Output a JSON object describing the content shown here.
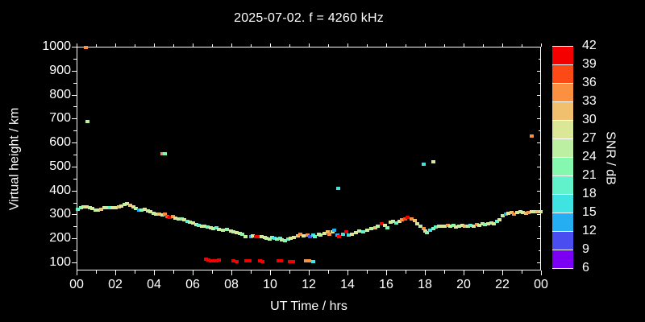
{
  "background": "#000000",
  "foreground": "#FFFFFF",
  "title": "2025-07-02. f = 4260 kHz",
  "chart_data": {
    "type": "scatter",
    "title": "2025-07-02. f = 4260 kHz",
    "xlabel": "UT Time / hrs",
    "ylabel": "Virtual height / km",
    "x_range_hours": [
      0,
      24
    ],
    "y_range_km": [
      100,
      1000
    ],
    "grid": false,
    "x_tick_labels": [
      "00",
      "02",
      "04",
      "06",
      "08",
      "10",
      "12",
      "14",
      "16",
      "18",
      "20",
      "22",
      "00"
    ],
    "x_major_ticks_hours": [
      0,
      2,
      4,
      6,
      8,
      10,
      12,
      14,
      16,
      18,
      20,
      22,
      24
    ],
    "x_minor_ticks_hours": [
      1,
      3,
      5,
      7,
      9,
      11,
      13,
      15,
      17,
      19,
      21,
      23
    ],
    "y_major_ticks_km": [
      1000,
      900,
      800,
      700,
      600,
      500,
      400,
      300,
      200,
      100
    ],
    "y_minor_ticks_km": [
      950,
      850,
      750,
      650,
      550,
      450,
      350,
      250,
      150
    ],
    "colorbar": {
      "label": "SNR / dB",
      "tick_labels": [
        "42",
        "39",
        "36",
        "33",
        "30",
        "27",
        "24",
        "21",
        "18",
        "15",
        "12",
        "9",
        "6"
      ],
      "bands_top_to_bottom": [
        "39",
        "36",
        "33",
        "30",
        "27",
        "24",
        "21",
        "18",
        "15",
        "12",
        "9",
        "6"
      ]
    },
    "snr_band_colors": {
      "39": "#F40000",
      "36": "#FB4A15",
      "33": "#FB9140",
      "30": "#F0C06E",
      "27": "#D9E797",
      "24": "#BDEFA3",
      "21": "#86F7AE",
      "18": "#62F2CB",
      "15": "#3FE4E2",
      "12": "#25AEF1",
      "9": "#4A4DF0",
      "6": "#7B00F3"
    },
    "points_hr_km_snrband": [
      [
        0.05,
        322,
        "18"
      ],
      [
        0.2,
        327,
        "21"
      ],
      [
        0.35,
        331,
        "27"
      ],
      [
        0.5,
        333,
        "27"
      ],
      [
        0.65,
        330,
        "24"
      ],
      [
        0.8,
        325,
        "27"
      ],
      [
        0.95,
        319,
        "24"
      ],
      [
        1.1,
        317,
        "27"
      ],
      [
        1.25,
        322,
        "30"
      ],
      [
        1.4,
        327,
        "27"
      ],
      [
        1.55,
        330,
        "24"
      ],
      [
        1.7,
        328,
        "18"
      ],
      [
        1.85,
        330,
        "27"
      ],
      [
        2.0,
        327,
        "27"
      ],
      [
        2.15,
        331,
        "30"
      ],
      [
        2.3,
        336,
        "27"
      ],
      [
        2.45,
        342,
        "24"
      ],
      [
        2.6,
        345,
        "27"
      ],
      [
        2.75,
        339,
        "30"
      ],
      [
        2.9,
        333,
        "27"
      ],
      [
        3.05,
        326,
        "24"
      ],
      [
        3.2,
        317,
        "12"
      ],
      [
        3.35,
        318,
        "21"
      ],
      [
        3.5,
        322,
        "27"
      ],
      [
        3.65,
        315,
        "24"
      ],
      [
        3.8,
        310,
        "27"
      ],
      [
        3.95,
        305,
        "24"
      ],
      [
        4.1,
        300,
        "27"
      ],
      [
        4.25,
        303,
        "30"
      ],
      [
        4.4,
        298,
        "24"
      ],
      [
        4.55,
        300,
        "33"
      ],
      [
        4.65,
        293,
        "36"
      ],
      [
        4.8,
        288,
        "39"
      ],
      [
        4.95,
        292,
        "33"
      ],
      [
        5.1,
        285,
        "27"
      ],
      [
        5.25,
        280,
        "24"
      ],
      [
        5.4,
        283,
        "21"
      ],
      [
        5.55,
        277,
        "27"
      ],
      [
        5.7,
        272,
        "18"
      ],
      [
        5.85,
        268,
        "24"
      ],
      [
        6.0,
        263,
        "27"
      ],
      [
        6.15,
        258,
        "24"
      ],
      [
        6.3,
        255,
        "18"
      ],
      [
        6.45,
        250,
        "27"
      ],
      [
        6.6,
        252,
        "24"
      ],
      [
        6.75,
        247,
        "21"
      ],
      [
        6.9,
        243,
        "27"
      ],
      [
        7.05,
        240,
        "24"
      ],
      [
        7.2,
        243,
        "18"
      ],
      [
        7.35,
        238,
        "27"
      ],
      [
        7.55,
        235,
        "24"
      ],
      [
        7.75,
        237,
        "21"
      ],
      [
        7.95,
        232,
        "27"
      ],
      [
        8.1,
        228,
        "24"
      ],
      [
        8.25,
        224,
        "27"
      ],
      [
        8.4,
        220,
        "24"
      ],
      [
        8.55,
        218,
        "21"
      ],
      [
        8.7,
        208,
        "24"
      ],
      [
        9.0,
        208,
        "12"
      ],
      [
        9.1,
        211,
        "27"
      ],
      [
        9.25,
        208,
        "39"
      ],
      [
        9.4,
        207,
        "39"
      ],
      [
        9.55,
        206,
        "27"
      ],
      [
        9.7,
        204,
        "27"
      ],
      [
        9.8,
        201,
        "24"
      ],
      [
        9.95,
        198,
        "24"
      ],
      [
        10.1,
        205,
        "21"
      ],
      [
        10.2,
        200,
        "15"
      ],
      [
        10.35,
        197,
        "21"
      ],
      [
        10.5,
        200,
        "18"
      ],
      [
        10.6,
        194,
        "24"
      ],
      [
        10.75,
        192,
        "21"
      ],
      [
        10.9,
        197,
        "18"
      ],
      [
        11.05,
        200,
        "27"
      ],
      [
        11.2,
        204,
        "27"
      ],
      [
        11.4,
        211,
        "30"
      ],
      [
        11.55,
        218,
        "33"
      ],
      [
        11.7,
        211,
        "27"
      ],
      [
        11.9,
        215,
        "33"
      ],
      [
        12.05,
        208,
        "9"
      ],
      [
        12.2,
        215,
        "15"
      ],
      [
        12.3,
        208,
        "18"
      ],
      [
        12.5,
        219,
        "24"
      ],
      [
        12.6,
        215,
        "24"
      ],
      [
        12.8,
        222,
        "27"
      ],
      [
        12.95,
        228,
        "30"
      ],
      [
        13.05,
        219,
        "33"
      ],
      [
        13.2,
        228,
        "27"
      ],
      [
        13.3,
        233,
        "12"
      ],
      [
        13.45,
        215,
        "12"
      ],
      [
        13.55,
        208,
        "39"
      ],
      [
        13.75,
        216,
        "15"
      ],
      [
        13.9,
        226,
        "39"
      ],
      [
        14.05,
        213,
        "15"
      ],
      [
        14.2,
        218,
        "27"
      ],
      [
        14.4,
        225,
        "27"
      ],
      [
        14.6,
        230,
        "24"
      ],
      [
        14.8,
        228,
        "18"
      ],
      [
        15.0,
        235,
        "27"
      ],
      [
        15.2,
        240,
        "24"
      ],
      [
        15.4,
        245,
        "30"
      ],
      [
        15.55,
        250,
        "24"
      ],
      [
        15.75,
        262,
        "39"
      ],
      [
        15.9,
        255,
        "27"
      ],
      [
        16.05,
        246,
        "21"
      ],
      [
        16.2,
        268,
        "27"
      ],
      [
        16.35,
        270,
        "24"
      ],
      [
        16.5,
        265,
        "18"
      ],
      [
        16.65,
        272,
        "27"
      ],
      [
        16.8,
        278,
        "33"
      ],
      [
        16.95,
        283,
        "36"
      ],
      [
        17.1,
        287,
        "39"
      ],
      [
        17.3,
        283,
        "33"
      ],
      [
        17.45,
        275,
        "30"
      ],
      [
        17.6,
        262,
        "27"
      ],
      [
        17.75,
        250,
        "24"
      ],
      [
        17.9,
        240,
        "33"
      ],
      [
        18.0,
        230,
        "27"
      ],
      [
        18.1,
        224,
        "21"
      ],
      [
        18.25,
        235,
        "15"
      ],
      [
        18.4,
        242,
        "21"
      ],
      [
        18.55,
        248,
        "18"
      ],
      [
        18.7,
        252,
        "24"
      ],
      [
        18.85,
        250,
        "27"
      ],
      [
        19.0,
        252,
        "27"
      ],
      [
        19.15,
        255,
        "33"
      ],
      [
        19.3,
        250,
        "24"
      ],
      [
        19.45,
        253,
        "21"
      ],
      [
        19.6,
        248,
        "27"
      ],
      [
        19.75,
        252,
        "24"
      ],
      [
        19.9,
        255,
        "27"
      ],
      [
        20.05,
        252,
        "30"
      ],
      [
        20.2,
        250,
        "24"
      ],
      [
        20.35,
        255,
        "18"
      ],
      [
        20.5,
        252,
        "27"
      ],
      [
        20.65,
        258,
        "33"
      ],
      [
        20.8,
        255,
        "27"
      ],
      [
        20.95,
        260,
        "24"
      ],
      [
        21.1,
        258,
        "21"
      ],
      [
        21.25,
        262,
        "27"
      ],
      [
        21.4,
        265,
        "24"
      ],
      [
        21.55,
        262,
        "27"
      ],
      [
        21.7,
        270,
        "18"
      ],
      [
        21.85,
        278,
        "27"
      ],
      [
        22.0,
        295,
        "24"
      ],
      [
        22.15,
        302,
        "12"
      ],
      [
        22.3,
        305,
        "27"
      ],
      [
        22.45,
        308,
        "30"
      ],
      [
        22.6,
        303,
        "33"
      ],
      [
        22.75,
        307,
        "27"
      ],
      [
        22.9,
        310,
        "24"
      ],
      [
        23.05,
        308,
        "27"
      ],
      [
        23.2,
        305,
        "30"
      ],
      [
        23.35,
        308,
        "33"
      ],
      [
        23.5,
        312,
        "27"
      ],
      [
        23.65,
        310,
        "24"
      ],
      [
        23.8,
        312,
        "30"
      ],
      [
        23.95,
        310,
        "27"
      ],
      [
        6.65,
        113,
        "39"
      ],
      [
        6.78,
        110,
        "39"
      ],
      [
        6.92,
        108,
        "39"
      ],
      [
        7.06,
        107,
        "39"
      ],
      [
        7.2,
        108,
        "39"
      ],
      [
        7.35,
        111,
        "39"
      ],
      [
        8.1,
        106,
        "39"
      ],
      [
        8.25,
        105,
        "39"
      ],
      [
        8.75,
        106,
        "39"
      ],
      [
        8.9,
        106,
        "39"
      ],
      [
        9.45,
        107,
        "39"
      ],
      [
        9.6,
        105,
        "39"
      ],
      [
        10.4,
        106,
        "39"
      ],
      [
        10.55,
        106,
        "39"
      ],
      [
        11.0,
        105,
        "39"
      ],
      [
        11.15,
        105,
        "39"
      ],
      [
        11.85,
        107,
        "33"
      ],
      [
        12.0,
        107,
        "33"
      ],
      [
        12.2,
        104,
        "15"
      ],
      [
        0.45,
        998,
        "33"
      ],
      [
        0.55,
        688,
        "24"
      ],
      [
        4.4,
        553,
        "33"
      ],
      [
        4.55,
        553,
        "21"
      ],
      [
        13.5,
        410,
        "15"
      ],
      [
        17.9,
        510,
        "15"
      ],
      [
        18.4,
        520,
        "27"
      ],
      [
        23.5,
        628,
        "33"
      ]
    ]
  }
}
